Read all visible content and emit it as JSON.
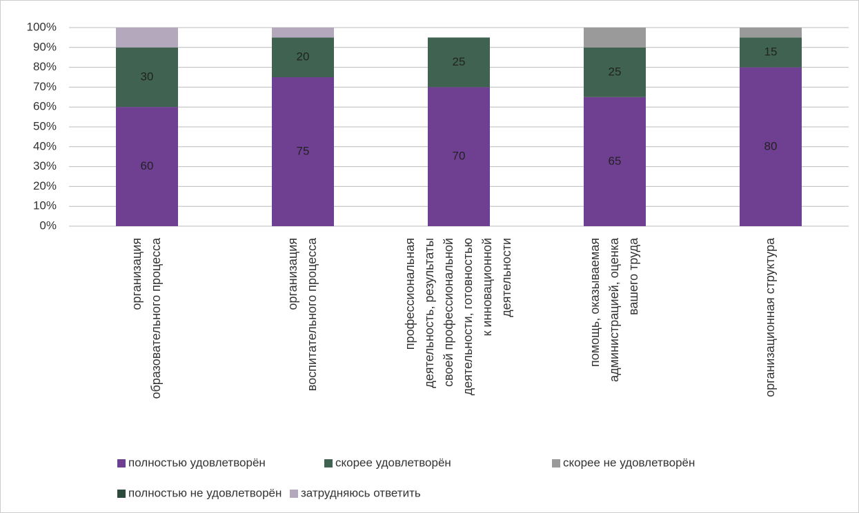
{
  "chart_data": {
    "type": "stacked_bar",
    "categories": [
      [
        "организация",
        "образовательного процесса"
      ],
      [
        "организация",
        "воспитательного процесса"
      ],
      [
        "профессиональная",
        "деятельность, результаты",
        "своей профессиональной",
        "деятельности, готовностью",
        "к инновационной",
        "деятельности"
      ],
      [
        "помощь, оказываемая",
        "администрацией, оценка",
        "вашего труда"
      ],
      [
        "организационная структура"
      ]
    ],
    "series": [
      {
        "name": "полностью удовлетворён",
        "color": "#6f3f92",
        "values": [
          60,
          75,
          70,
          65,
          80
        ],
        "show_labels": true
      },
      {
        "name": "скорее удовлетворён",
        "color": "#3f6350",
        "values": [
          30,
          20,
          25,
          25,
          15
        ],
        "show_labels": true
      },
      {
        "name": "скорее не удовлетворён",
        "color": "#9a9a9a",
        "values": [
          0,
          0,
          0,
          10,
          5
        ],
        "show_labels": false
      },
      {
        "name": "полностью не удовлетворён",
        "color": "#2e4a3c",
        "values": [
          0,
          0,
          0,
          0,
          0
        ],
        "show_labels": false
      },
      {
        "name": "затрудняюсь ответить",
        "color": "#b4a8bc",
        "values": [
          10,
          5,
          0,
          0,
          0
        ],
        "show_labels": false
      }
    ],
    "ylim": [
      0,
      100
    ],
    "yticks": [
      {
        "value": 0,
        "label": "0%"
      },
      {
        "value": 10,
        "label": "10%"
      },
      {
        "value": 20,
        "label": "20%"
      },
      {
        "value": 30,
        "label": "30%"
      },
      {
        "value": 40,
        "label": "40%"
      },
      {
        "value": 50,
        "label": "50%"
      },
      {
        "value": 60,
        "label": "60%"
      },
      {
        "value": 70,
        "label": "70%"
      },
      {
        "value": 80,
        "label": "80%"
      },
      {
        "value": 90,
        "label": "90%"
      },
      {
        "value": 100,
        "label": "100%"
      }
    ],
    "grid": true,
    "legend": "bottom"
  }
}
